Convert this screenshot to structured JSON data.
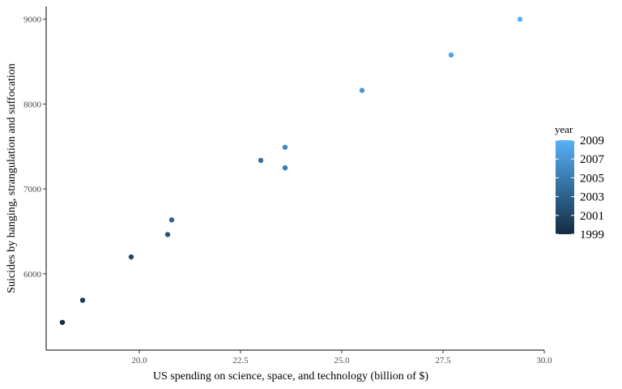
{
  "chart_data": {
    "type": "scatter",
    "xlabel": "US spending on science, space, and technology (billion of $)",
    "ylabel": "Suicides by hanging, strangulation and suffocation",
    "xlim": [
      17.7,
      30.0
    ],
    "ylim": [
      5100,
      9150
    ],
    "x_ticks": [
      20.0,
      22.5,
      25.0,
      27.5,
      30.0
    ],
    "x_tick_labels": [
      "20.0",
      "22.5",
      "25.0",
      "27.5",
      "30.0"
    ],
    "y_ticks": [
      6000,
      7000,
      8000,
      9000
    ],
    "y_tick_labels": [
      "6000",
      "7000",
      "8000",
      "9000"
    ],
    "grid": false,
    "legend": {
      "title": "year",
      "placement": "right",
      "type": "colorbar",
      "range": [
        1999,
        2009
      ],
      "labels": [
        "2009",
        "2007",
        "2005",
        "2003",
        "2001",
        "1999"
      ],
      "low_color": "#132B43",
      "high_color": "#56B1F7"
    },
    "points": [
      {
        "year": 1999,
        "x": 18.1,
        "y": 5427
      },
      {
        "year": 2000,
        "x": 18.6,
        "y": 5688
      },
      {
        "year": 2001,
        "x": 19.8,
        "y": 6198
      },
      {
        "year": 2002,
        "x": 20.7,
        "y": 6462
      },
      {
        "year": 2003,
        "x": 20.8,
        "y": 6635
      },
      {
        "year": 2004,
        "x": 23.0,
        "y": 7336
      },
      {
        "year": 2005,
        "x": 23.6,
        "y": 7248
      },
      {
        "year": 2006,
        "x": 23.6,
        "y": 7491
      },
      {
        "year": 2007,
        "x": 25.5,
        "y": 8161
      },
      {
        "year": 2008,
        "x": 27.7,
        "y": 8578
      },
      {
        "year": 2009,
        "x": 29.4,
        "y": 9000
      }
    ]
  }
}
